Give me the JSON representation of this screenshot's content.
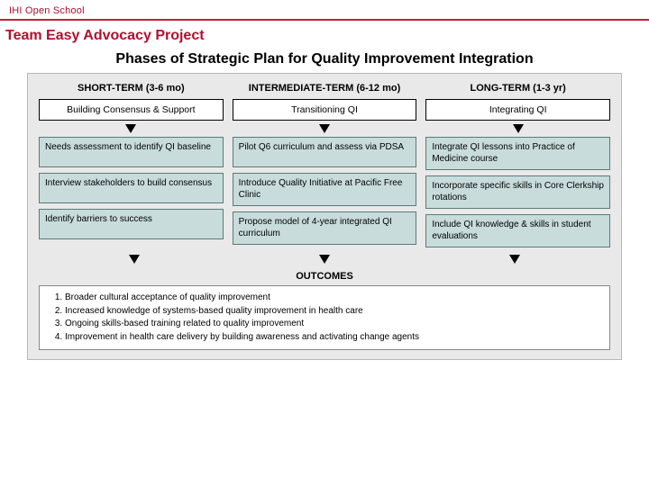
{
  "header": {
    "brand": "IHI Open School",
    "subtitle": "Team Easy Advocacy Project"
  },
  "figure": {
    "title": "Phases of Strategic Plan for Quality Improvement Integration",
    "type": "flowchart",
    "background_color": "#e9e9e9",
    "border_color": "#b8b8b8",
    "phase_box_bg": "#ffffff",
    "phase_box_border": "#000000",
    "card_bg": "#c8dcdc",
    "card_border": "#5a7a7a",
    "arrow_color": "#000000",
    "columns": [
      {
        "head": "SHORT-TERM (3-6 mo)",
        "phase": "Building Consensus & Support",
        "cards": [
          "Needs assessment to identify QI baseline",
          "Interview stakeholders to build consensus",
          "Identify barriers to success"
        ]
      },
      {
        "head": "INTERMEDIATE-TERM (6-12 mo)",
        "phase": "Transitioning QI",
        "cards": [
          "Pilot Q6 curriculum and assess via PDSA",
          "Introduce Quality Initiative at Pacific Free Clinic",
          "Propose model of 4-year integrated QI curriculum"
        ]
      },
      {
        "head": "LONG-TERM (1-3 yr)",
        "phase": "Integrating QI",
        "cards": [
          "Integrate QI lessons into Practice of Medicine course",
          "Incorporate specific skills in Core Clerkship rotations",
          "Include QI knowledge & skills in student evaluations"
        ]
      }
    ],
    "outcomes_label": "OUTCOMES",
    "outcomes": [
      "Broader cultural acceptance of quality improvement",
      "Increased knowledge of systems-based quality improvement in health care",
      "Ongoing skills-based training related to quality improvement",
      "Improvement in health care delivery by building awareness and activating change agents"
    ]
  },
  "typography": {
    "brand_fontsize": 11,
    "subtitle_fontsize": 16,
    "figure_title_fontsize": 16,
    "col_head_fontsize": 11,
    "phase_fontsize": 10.5,
    "card_fontsize": 10,
    "outcomes_fontsize": 10
  },
  "colors": {
    "brand_red": "#b01030",
    "rule_red": "#c41e3a",
    "text_black": "#000000",
    "page_bg": "#ffffff"
  }
}
